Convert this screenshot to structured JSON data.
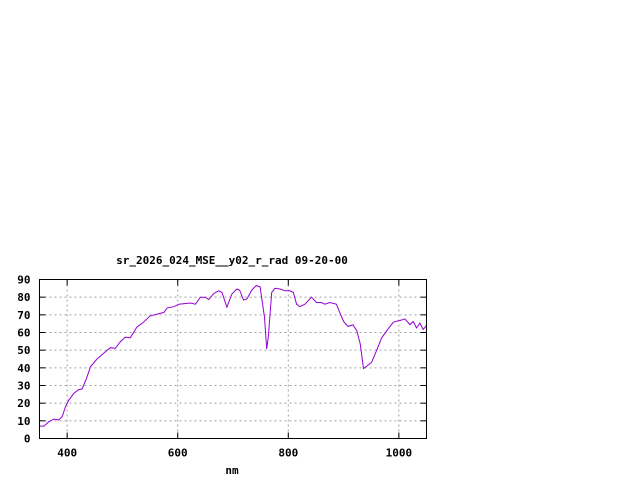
{
  "chart_data": {
    "type": "line",
    "title": "sr_2026_024_MSE__y02_r_rad 09-20-00",
    "xlabel": "nm",
    "ylabel": "",
    "xlim": [
      350,
      1050
    ],
    "ylim": [
      0,
      90
    ],
    "xticks": [
      400,
      600,
      800,
      1000
    ],
    "yticks": [
      0,
      10,
      20,
      30,
      40,
      50,
      60,
      70,
      80,
      90
    ],
    "grid": true,
    "legend": "none",
    "series": [
      {
        "color": "#9400d3",
        "x": [
          350,
          358,
          367,
          376,
          385,
          391,
          397,
          403,
          412,
          421,
          427,
          435,
          442,
          454,
          469,
          478,
          487,
          496,
          505,
          514,
          526,
          538,
          550,
          575,
          581,
          593,
          602,
          623,
          632,
          641,
          650,
          656,
          665,
          674,
          680,
          689,
          698,
          707,
          712,
          719,
          725,
          734,
          742,
          749,
          757,
          761,
          764,
          770,
          776,
          785,
          794,
          803,
          809,
          815,
          821,
          830,
          842,
          851,
          860,
          866,
          875,
          887,
          893,
          900,
          908,
          917,
          924,
          930,
          936,
          942,
          951,
          960,
          969,
          978,
          990,
          996,
          1002,
          1011,
          1020,
          1026,
          1032,
          1038,
          1044,
          1050
        ],
        "y": [
          7,
          7,
          9.5,
          11,
          10.5,
          12.4,
          18,
          21.7,
          25.5,
          27.7,
          28,
          34,
          40.5,
          45,
          49,
          51.4,
          51,
          54.6,
          57.4,
          57,
          63,
          65.8,
          69.4,
          71.4,
          73.9,
          74.6,
          76,
          76.7,
          76,
          80,
          80,
          78.6,
          82,
          83.6,
          82.7,
          74.3,
          81.8,
          84.6,
          84,
          78.4,
          78.9,
          84,
          86.6,
          85.8,
          68.6,
          50.6,
          58,
          82.7,
          85,
          84.6,
          83.6,
          83.6,
          82.7,
          76,
          74.6,
          76,
          80,
          77,
          77,
          76,
          77,
          76,
          71.4,
          66.2,
          63.4,
          64.3,
          61,
          53.6,
          39.6,
          41,
          43.3,
          50,
          57,
          61,
          65.8,
          66.4,
          66.8,
          67.7,
          64.5,
          66.2,
          62.6,
          65.3,
          61.7,
          64
        ]
      }
    ]
  }
}
